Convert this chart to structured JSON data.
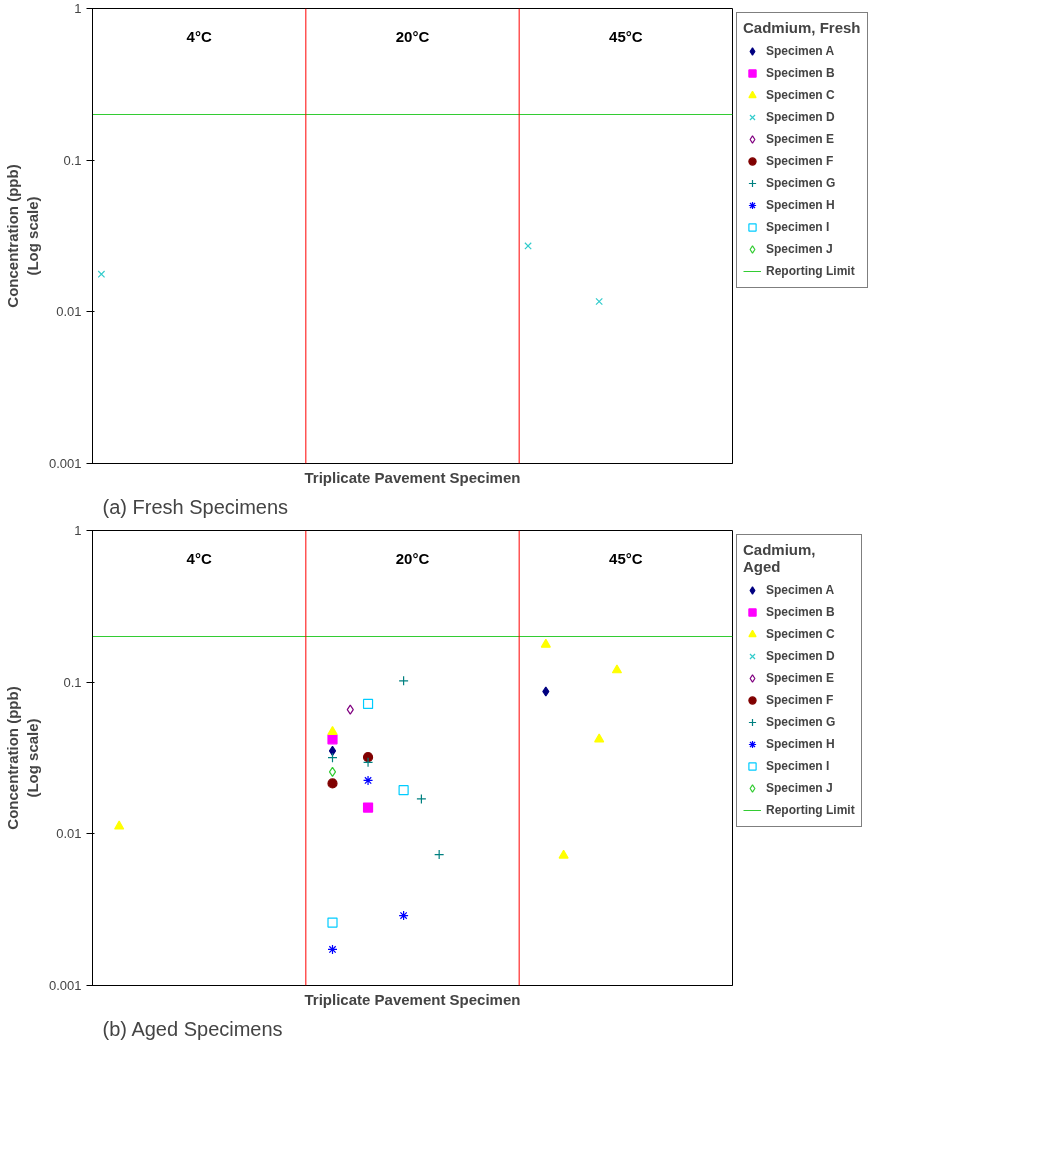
{
  "chart_data": [
    {
      "type": "scatter",
      "legend_title": "Cadmium, Fresh",
      "xlabel": "Triplicate Pavement Specimen",
      "ylabel": "Concentration (ppb)\n(Log scale)",
      "log": "y",
      "grid": false,
      "legend": "right",
      "tick_labels": "y",
      "ylim": [
        0.001,
        1
      ],
      "yticks": [
        0.001,
        0.01,
        0.1,
        1
      ],
      "categories": [
        null,
        null,
        null,
        null,
        null,
        null,
        null,
        null,
        null,
        null,
        null,
        null,
        null,
        null,
        null,
        null,
        null,
        null,
        null,
        null,
        null,
        null,
        null,
        null,
        null,
        null,
        null,
        null,
        null,
        null,
        null,
        null,
        null,
        null,
        null,
        null
      ],
      "series": [
        {
          "name": "Specimen A",
          "color": "#000080",
          "marker": "diamond",
          "values": [
            null,
            null,
            null,
            null,
            null,
            null,
            null,
            null,
            null,
            null,
            null,
            null,
            null,
            null,
            null,
            null,
            null,
            null,
            null,
            null,
            null,
            null,
            null,
            null,
            null,
            null,
            null,
            null,
            null,
            null,
            null,
            null,
            null,
            null,
            null,
            null
          ]
        },
        {
          "name": "Specimen B",
          "color": "#ff00ff",
          "marker": "square",
          "values": [
            null,
            null,
            null,
            null,
            null,
            null,
            null,
            null,
            null,
            null,
            null,
            null,
            null,
            null,
            null,
            null,
            null,
            null,
            null,
            null,
            null,
            null,
            null,
            null,
            null,
            null,
            null,
            null,
            null,
            null,
            null,
            null,
            null,
            null,
            null,
            null
          ]
        },
        {
          "name": "Specimen C",
          "color": "#ffff00",
          "marker": "triangle",
          "values": [
            null,
            null,
            null,
            null,
            null,
            null,
            null,
            null,
            null,
            null,
            null,
            null,
            null,
            null,
            null,
            null,
            null,
            null,
            null,
            null,
            null,
            null,
            null,
            null,
            null,
            null,
            null,
            null,
            null,
            null,
            null,
            null,
            null,
            null,
            null,
            null
          ]
        },
        {
          "name": "Specimen D",
          "color": "#33cccc",
          "marker": "x",
          "values": [
            0.0177,
            null,
            null,
            null,
            null,
            null,
            null,
            null,
            null,
            null,
            null,
            null,
            null,
            null,
            null,
            null,
            null,
            null,
            null,
            null,
            null,
            null,
            null,
            null,
            0.0272,
            null,
            null,
            null,
            0.0117,
            null,
            null,
            null,
            null,
            null,
            null,
            null
          ]
        },
        {
          "name": "Specimen E",
          "color": "#800080",
          "marker": "diamond_open",
          "values": [
            null,
            null,
            null,
            null,
            null,
            null,
            null,
            null,
            null,
            null,
            null,
            null,
            null,
            null,
            null,
            null,
            null,
            null,
            null,
            null,
            null,
            null,
            null,
            null,
            null,
            null,
            null,
            null,
            null,
            null,
            null,
            null,
            null,
            null,
            null,
            null
          ]
        },
        {
          "name": "Specimen F",
          "color": "#800000",
          "marker": "circle",
          "values": [
            null,
            null,
            null,
            null,
            null,
            null,
            null,
            null,
            null,
            null,
            null,
            null,
            null,
            null,
            null,
            null,
            null,
            null,
            null,
            null,
            null,
            null,
            null,
            null,
            null,
            null,
            null,
            null,
            null,
            null,
            null,
            null,
            null,
            null,
            null,
            null
          ]
        },
        {
          "name": "Specimen G",
          "color": "#008080",
          "marker": "cross",
          "values": [
            null,
            null,
            null,
            null,
            null,
            null,
            null,
            null,
            null,
            null,
            null,
            null,
            null,
            null,
            null,
            null,
            null,
            null,
            null,
            null,
            null,
            null,
            null,
            null,
            null,
            null,
            null,
            null,
            null,
            null,
            null,
            null,
            null,
            null,
            null,
            null
          ]
        },
        {
          "name": "Specimen H",
          "color": "#0000ff",
          "values": [
            null,
            null,
            null,
            null,
            null,
            null,
            null,
            null,
            null,
            null,
            null,
            null,
            null,
            null,
            null,
            null,
            null,
            null,
            null,
            null,
            null,
            null,
            null,
            null,
            null,
            null,
            null,
            null,
            null,
            null,
            null,
            null,
            null,
            null,
            null,
            null
          ]
        },
        {
          "name": "Specimen I",
          "color": "#00ccff",
          "marker": "square_open",
          "values": [
            null,
            null,
            null,
            null,
            null,
            null,
            null,
            null,
            null,
            null,
            null,
            null,
            null,
            null,
            null,
            null,
            null,
            null,
            null,
            null,
            null,
            null,
            null,
            null,
            null,
            null,
            null,
            null,
            null,
            null,
            null,
            null,
            null,
            null,
            null,
            null
          ]
        },
        {
          "name": "Specimen J",
          "color": "#33cc33",
          "marker": "diamond_open",
          "values": [
            null,
            null,
            null,
            null,
            null,
            null,
            null,
            null,
            null,
            null,
            null,
            null,
            null,
            null,
            null,
            null,
            null,
            null,
            null,
            null,
            null,
            null,
            null,
            null,
            null,
            null,
            null,
            null,
            null,
            null,
            null,
            null,
            null,
            null,
            null,
            null
          ]
        }
      ],
      "ref_lines": [
        {
          "axis": "y",
          "value": 0.2,
          "label": "Reporting Limit",
          "color": "#33cc33"
        }
      ],
      "annotations": [
        "4°C",
        "20°C",
        "45°C",
        "(a) Fresh Specimens"
      ]
    },
    {
      "type": "scatter",
      "legend_title": "Cadmium,\nAged",
      "xlabel": "Triplicate Pavement Specimen",
      "ylabel": "Concentration (ppb)\n(Log scale)",
      "log": "y",
      "grid": false,
      "legend": "right",
      "tick_labels": "y",
      "ylim": [
        0.001,
        1
      ],
      "yticks": [
        0.001,
        0.01,
        0.1,
        1
      ],
      "categories": [
        null,
        null,
        null,
        null,
        null,
        null,
        null,
        null,
        null,
        null,
        null,
        null,
        null,
        null,
        null,
        null,
        null,
        null,
        null,
        null,
        null,
        null,
        null,
        null,
        null,
        null,
        null,
        null,
        null,
        null,
        null,
        null,
        null,
        null,
        null,
        null
      ],
      "series": [
        {
          "name": "Specimen A",
          "color": "#000080",
          "marker": "diamond",
          "values": [
            null,
            null,
            null,
            null,
            null,
            null,
            null,
            null,
            null,
            null,
            null,
            null,
            null,
            0.0352,
            null,
            null,
            null,
            null,
            null,
            null,
            null,
            null,
            null,
            null,
            null,
            0.0868,
            null,
            null,
            null,
            null,
            null,
            null,
            null,
            null,
            null,
            null
          ]
        },
        {
          "name": "Specimen B",
          "color": "#ff00ff",
          "marker": "square",
          "values": [
            null,
            null,
            null,
            null,
            null,
            null,
            null,
            null,
            null,
            null,
            null,
            null,
            null,
            0.042,
            null,
            0.0149,
            null,
            null,
            null,
            null,
            null,
            null,
            null,
            null,
            null,
            null,
            null,
            null,
            null,
            null,
            null,
            null,
            null,
            null,
            null,
            null
          ]
        },
        {
          "name": "Specimen C",
          "color": "#ffff00",
          "marker": "triangle",
          "values": [
            null,
            0.0112,
            null,
            null,
            null,
            null,
            null,
            null,
            null,
            null,
            null,
            null,
            null,
            0.0471,
            null,
            null,
            null,
            null,
            null,
            null,
            null,
            null,
            null,
            null,
            null,
            0.177,
            0.0072,
            null,
            0.042,
            0.12,
            null,
            null,
            null,
            null,
            null,
            null
          ]
        },
        {
          "name": "Specimen D",
          "color": "#33cccc",
          "marker": "x",
          "values": [
            null,
            null,
            null,
            null,
            null,
            null,
            null,
            null,
            null,
            null,
            null,
            null,
            null,
            null,
            null,
            null,
            null,
            null,
            null,
            null,
            null,
            null,
            null,
            null,
            null,
            null,
            null,
            null,
            null,
            null,
            null,
            null,
            null,
            null,
            null,
            null
          ]
        },
        {
          "name": "Specimen E",
          "color": "#800080",
          "marker": "diamond_open",
          "values": [
            null,
            null,
            null,
            null,
            null,
            null,
            null,
            null,
            null,
            null,
            null,
            null,
            null,
            null,
            0.0659,
            null,
            null,
            null,
            null,
            null,
            null,
            null,
            null,
            null,
            null,
            null,
            null,
            null,
            null,
            null,
            null,
            null,
            null,
            null,
            null,
            null
          ]
        },
        {
          "name": "Specimen F",
          "color": "#800000",
          "marker": "circle",
          "values": [
            null,
            null,
            null,
            null,
            null,
            null,
            null,
            null,
            null,
            null,
            null,
            null,
            null,
            0.0215,
            null,
            0.032,
            null,
            null,
            null,
            null,
            null,
            null,
            null,
            null,
            null,
            null,
            null,
            null,
            null,
            null,
            null,
            null,
            null,
            null,
            null,
            null
          ]
        },
        {
          "name": "Specimen G",
          "color": "#008080",
          "marker": "cross",
          "values": [
            null,
            null,
            null,
            null,
            null,
            null,
            null,
            null,
            null,
            null,
            null,
            null,
            null,
            0.0318,
            null,
            0.0296,
            null,
            0.102,
            0.017,
            0.0073,
            null,
            null,
            null,
            null,
            null,
            null,
            null,
            null,
            null,
            null,
            null,
            null,
            null,
            null,
            null,
            null
          ]
        },
        {
          "name": "Specimen H",
          "color": "#0000ff",
          "values": [
            null,
            null,
            null,
            null,
            null,
            null,
            null,
            null,
            null,
            null,
            null,
            null,
            null,
            0.00173,
            null,
            0.0225,
            null,
            0.00289,
            null,
            null,
            null,
            null,
            null,
            null,
            null,
            null,
            null,
            null,
            null,
            null,
            null,
            null,
            null,
            null,
            null,
            null
          ]
        },
        {
          "name": "Specimen I",
          "color": "#00ccff",
          "marker": "square_open",
          "values": [
            null,
            null,
            null,
            null,
            null,
            null,
            null,
            null,
            null,
            null,
            null,
            null,
            null,
            0.0026,
            null,
            0.0719,
            null,
            0.0194,
            null,
            null,
            null,
            null,
            null,
            null,
            null,
            null,
            null,
            null,
            null,
            null,
            null,
            null,
            null,
            null,
            null,
            null
          ]
        },
        {
          "name": "Specimen J",
          "color": "#33cc33",
          "marker": "diamond_open",
          "values": [
            null,
            null,
            null,
            null,
            null,
            null,
            null,
            null,
            null,
            null,
            null,
            null,
            null,
            0.0256,
            null,
            null,
            null,
            null,
            null,
            null,
            null,
            null,
            null,
            null,
            null,
            null,
            null,
            null,
            null,
            null,
            null,
            null,
            null,
            null,
            null,
            null
          ]
        }
      ],
      "ref_lines": [
        {
          "axis": "y",
          "value": 0.2,
          "label": "Reporting Limit",
          "color": "#33cc33"
        }
      ],
      "annotations": [
        "4°C",
        "20°C",
        "45°C",
        "(b) Aged Specimens"
      ]
    }
  ]
}
